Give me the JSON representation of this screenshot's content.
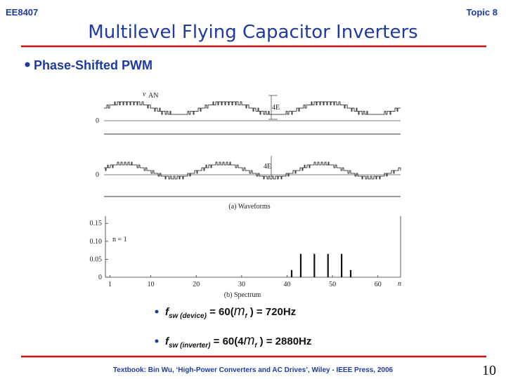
{
  "header": {
    "course": "EE8407",
    "topic": "Topic 8",
    "title": "Multilevel Flying Capacitor Inverters"
  },
  "bullet": "Phase-Shifted PWM",
  "figure": {
    "top_label": "v",
    "top_label_sub": "AN",
    "top_level": "4E",
    "top_zero": "0",
    "bottom_level": "4E",
    "bottom_zero": "0",
    "caption_a": "(a) Waveforms",
    "spectrum": {
      "type": "bar",
      "xlim": [
        0,
        65
      ],
      "ylim": [
        0,
        0.17
      ],
      "yticks": [
        {
          "value": 0.15,
          "label": "0.15"
        },
        {
          "value": 0.1,
          "label": "0.10"
        },
        {
          "value": 0.05,
          "label": "0.05"
        },
        0
      ],
      "xticks": [
        1,
        10,
        20,
        30,
        40,
        50,
        60
      ],
      "xlabel": "n",
      "annotation": "n = 1",
      "harmonics": [
        41,
        43,
        46,
        49,
        52,
        54
      ],
      "values": [
        0.02,
        0.065,
        0.065,
        0.065,
        0.065,
        0.02
      ],
      "caption_b": "(b) Spectrum"
    }
  },
  "formulas": [
    {
      "f": "f",
      "sub": "sw (device)",
      "mid": " = 60(",
      "m": "m",
      "msub": "f",
      "end": " ) = 720Hz"
    },
    {
      "f": "f",
      "sub": "sw (inverter)",
      "mid": " = 60(4",
      "m": "m",
      "msub": "f",
      "end": " ) = 2880Hz"
    }
  ],
  "footer": {
    "text": "Textbook: Bin Wu, ‘High-Power Converters and AC Drives’, Wiley - IEEE Press, 2006",
    "page": "10"
  }
}
